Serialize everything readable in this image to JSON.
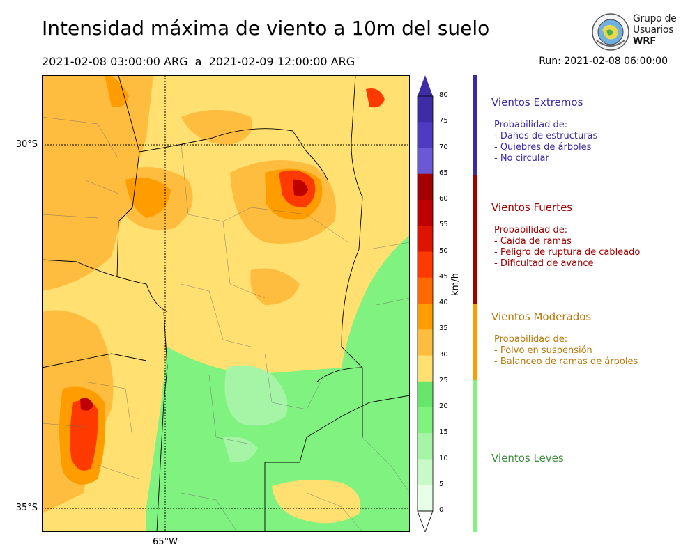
{
  "title": "Intensidad máxima de viento a 10m del suelo",
  "period": "2021-02-08 03:00:00 ARG  a  2021-02-09 12:00:00 ARG",
  "run": "Run: 2021-02-08 06:00:00",
  "logo": {
    "line1": "Grupo de",
    "line2": "Usuarios",
    "line3": "WRF"
  },
  "map": {
    "lat_labels": [
      "30°S",
      "35°S"
    ],
    "lon_labels": [
      "65°W"
    ]
  },
  "colorbar": {
    "unit": "km/h",
    "ticks": [
      "80",
      "75",
      "70",
      "65",
      "60",
      "55",
      "50",
      "45",
      "40",
      "35",
      "30",
      "25",
      "20",
      "15",
      "10",
      "5",
      "0"
    ],
    "colors": [
      "#3e2ba6",
      "#4d3cc3",
      "#6b58d6",
      "#a30000",
      "#bd0000",
      "#dc1400",
      "#ff3a00",
      "#ff6a00",
      "#ff9d00",
      "#ffbd40",
      "#ffe070",
      "#66e66b",
      "#7ff27f",
      "#a6f5a6",
      "#c8fac8",
      "#e6ffe6"
    ],
    "extend_top": "#3e2ba6",
    "extend_bottom": "#ffffff"
  },
  "categories": [
    {
      "title": "Vientos Extremos",
      "color": "#3a2aa8",
      "lines": [
        "Probabilidad de:",
        "- Daños de estructuras",
        "- Quiebres de árboles",
        "- No circular"
      ]
    },
    {
      "title": "Vientos Fuertes",
      "color": "#a00000",
      "lines": [
        "Probabilidad de:",
        "- Caida de ramas",
        "- Peligro de ruptura de cableado",
        "- Dificultad de avance"
      ]
    },
    {
      "title": "Vientos Moderados",
      "color": "#b8780a",
      "lines": [
        "Probabilidad de:",
        "- Polvo en suspensión",
        "- Balanceo de ramas de árboles"
      ]
    },
    {
      "title": "Vientos Leves",
      "color": "#3c8c3c",
      "lines": []
    }
  ],
  "band_colors": [
    "#3a2aa8",
    "#a00000",
    "#ff9d00",
    "#7ff27f"
  ]
}
